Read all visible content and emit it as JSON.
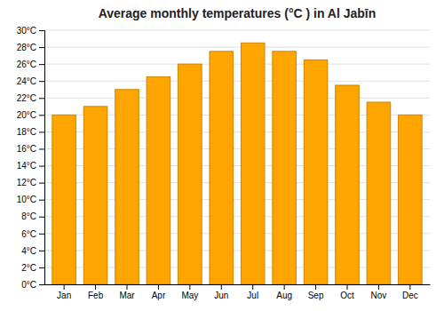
{
  "chart_data": {
    "type": "bar",
    "title": "Average monthly temperatures (°C ) in Al Jabīn",
    "categories": [
      "Jan",
      "Feb",
      "Mar",
      "Apr",
      "May",
      "Jun",
      "Jul",
      "Aug",
      "Sep",
      "Oct",
      "Nov",
      "Dec"
    ],
    "values": [
      20,
      21,
      23,
      24.5,
      26,
      27.5,
      28.5,
      27.5,
      26.5,
      23.5,
      21.5,
      20
    ],
    "color": "#FFA500",
    "ylim": [
      0,
      30
    ],
    "yticks": [
      {
        "value": 0,
        "label": "0°C"
      },
      {
        "value": 2,
        "label": "2°C"
      },
      {
        "value": 4,
        "label": "4°C"
      },
      {
        "value": 6,
        "label": "6°C"
      },
      {
        "value": 8,
        "label": "8°C"
      },
      {
        "value": 10,
        "label": "10°C"
      },
      {
        "value": 12,
        "label": "12°C"
      },
      {
        "value": 14,
        "label": "14°C"
      },
      {
        "value": 16,
        "label": "16°C"
      },
      {
        "value": 18,
        "label": "18°C"
      },
      {
        "value": 20,
        "label": "20°C"
      },
      {
        "value": 22,
        "label": "22°C"
      },
      {
        "value": 24,
        "label": "24°C"
      },
      {
        "value": 26,
        "label": "26°C"
      },
      {
        "value": 28,
        "label": "28°C"
      },
      {
        "value": 30,
        "label": "30°C"
      }
    ],
    "grid": true
  }
}
